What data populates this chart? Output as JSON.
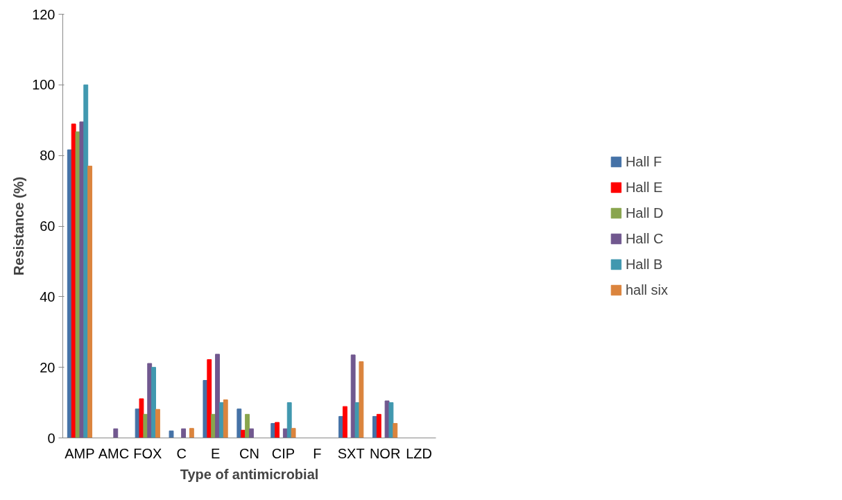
{
  "chart_data": {
    "type": "bar",
    "xlabel": "Type of antimicrobial",
    "ylabel": "Resistance (%)",
    "categories": [
      "AMP",
      "AMC",
      "FOX",
      "C",
      "E",
      "CN",
      "CIP",
      "F",
      "SXT",
      "NOR",
      "LZD"
    ],
    "series": [
      {
        "name": "Hall F",
        "color": "#4572a7",
        "values": [
          81.6,
          0,
          8.2,
          2,
          16.3,
          8.2,
          4.1,
          0,
          6.1,
          6.1,
          0
        ]
      },
      {
        "name": "Hall E",
        "color": "#ff0000",
        "values": [
          88.9,
          0,
          11.1,
          0,
          22.2,
          2.2,
          4.4,
          0,
          8.9,
          6.7,
          0
        ]
      },
      {
        "name": "Hall D",
        "color": "#89a54e",
        "values": [
          86.7,
          0,
          6.7,
          0,
          6.7,
          6.7,
          0,
          0,
          0,
          0,
          0
        ]
      },
      {
        "name": "Hall C",
        "color": "#71588f",
        "values": [
          89.5,
          2.6,
          21.1,
          2.6,
          23.7,
          2.6,
          2.6,
          0,
          23.5,
          10.5,
          0
        ]
      },
      {
        "name": "Hall B",
        "color": "#4198af",
        "values": [
          100,
          0,
          20,
          0,
          10,
          0,
          10,
          0,
          10,
          10,
          0
        ]
      },
      {
        "name": "hall six",
        "color": "#db843d",
        "values": [
          77,
          0,
          8.1,
          2.7,
          10.8,
          0,
          2.7,
          0,
          21.6,
          4.1,
          0
        ]
      }
    ],
    "ylim": [
      0,
      120
    ],
    "yticks": [
      0,
      20,
      40,
      60,
      80,
      100,
      120
    ],
    "grid": false,
    "legend": "right"
  }
}
